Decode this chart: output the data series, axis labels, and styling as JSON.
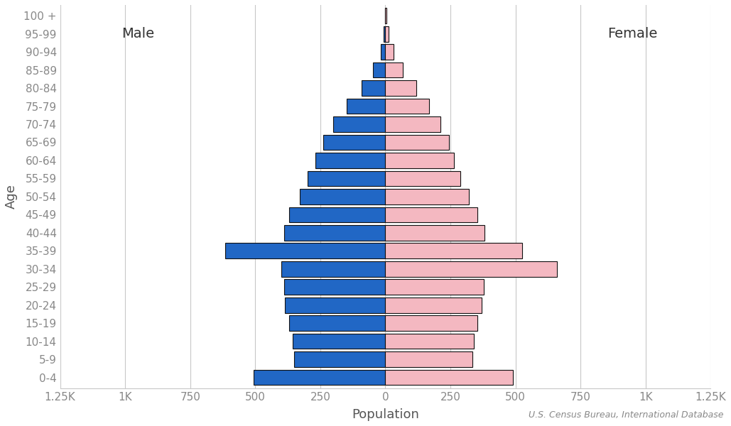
{
  "age_groups": [
    "0-4",
    "5-9",
    "10-14",
    "15-19",
    "20-24",
    "25-29",
    "30-34",
    "35-39",
    "40-44",
    "45-49",
    "50-54",
    "55-59",
    "60-64",
    "65-69",
    "70-74",
    "75-79",
    "80-84",
    "85-89",
    "90-94",
    "95-99",
    "100 +"
  ],
  "male": [
    505,
    350,
    355,
    370,
    385,
    390,
    400,
    615,
    390,
    370,
    330,
    300,
    270,
    240,
    200,
    148,
    92,
    48,
    18,
    6,
    2
  ],
  "female": [
    490,
    335,
    340,
    355,
    370,
    378,
    660,
    525,
    380,
    355,
    320,
    288,
    265,
    245,
    212,
    168,
    118,
    68,
    33,
    12,
    4
  ],
  "male_color": "#2167c5",
  "female_color": "#f4b8c1",
  "edge_color": "#111111",
  "background_color": "#ffffff",
  "grid_color": "#c8c8c8",
  "xlabel": "Population",
  "ylabel": "Age",
  "male_label": "Male",
  "female_label": "Female",
  "source_text": "U.S. Census Bureau, International Database",
  "tick_label_color": "#888888",
  "axis_label_color": "#555555",
  "label_fontsize": 13,
  "tick_fontsize": 11,
  "source_fontsize": 9,
  "xlim": 1250,
  "bar_height": 0.85,
  "xtick_positions": [
    -1250,
    -1000,
    -750,
    -500,
    -250,
    0,
    250,
    500,
    750,
    1000,
    1250
  ],
  "xtick_labels": [
    "1.25K",
    "1K",
    "750",
    "500",
    "250",
    "0",
    "250",
    "500",
    "750",
    "1K",
    "1.25K"
  ]
}
